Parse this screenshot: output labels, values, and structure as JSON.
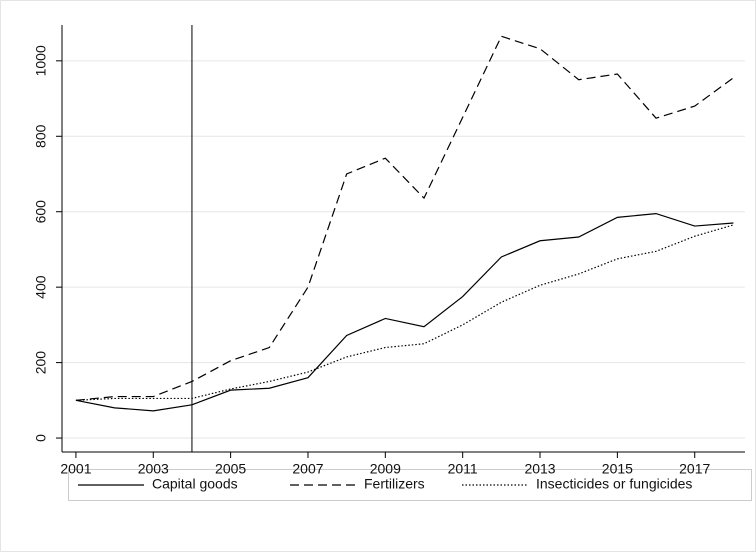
{
  "chart_data": {
    "type": "line",
    "x": [
      2001,
      2002,
      2003,
      2004,
      2005,
      2006,
      2007,
      2008,
      2009,
      2010,
      2011,
      2012,
      2013,
      2014,
      2015,
      2016,
      2017,
      2018
    ],
    "series": [
      {
        "name": "Capital goods",
        "color": "#000000",
        "dash": "none",
        "values": [
          100,
          80,
          72,
          88,
          127,
          132,
          160,
          272,
          317,
          295,
          375,
          480,
          523,
          533,
          585,
          595,
          562,
          570
        ]
      },
      {
        "name": "Fertilizers",
        "color": "#000000",
        "dash": "9,5",
        "values": [
          100,
          110,
          110,
          150,
          205,
          240,
          400,
          700,
          742,
          636,
          850,
          1065,
          1032,
          950,
          965,
          848,
          880,
          955
        ]
      },
      {
        "name": "Insecticides or fungicides",
        "color": "#000000",
        "dash": "1.5,2",
        "values": [
          100,
          105,
          105,
          105,
          130,
          150,
          175,
          215,
          240,
          250,
          300,
          360,
          405,
          435,
          475,
          495,
          535,
          565
        ]
      }
    ],
    "vline": 2004,
    "xlim": [
      2000.64,
      2018.3
    ],
    "ylim": [
      -37,
      1095
    ],
    "xticks": [
      2001,
      2003,
      2005,
      2007,
      2009,
      2011,
      2013,
      2015,
      2017
    ],
    "yticks": [
      0,
      200,
      400,
      600,
      800,
      1000
    ],
    "grid": true
  }
}
